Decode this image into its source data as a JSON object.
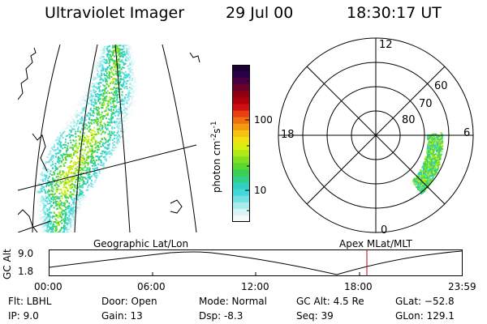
{
  "header": {
    "instrument": "Ultraviolet Imager",
    "date": "29 Jul 00",
    "time": "18:30:17 UT"
  },
  "colorbar": {
    "unit_label": "photon cm",
    "unit_sup1": "-2",
    "unit_mid": "s",
    "unit_sup2": "-1",
    "ticks": [
      "100",
      "10"
    ],
    "colors": [
      "#1a0033",
      "#2c0048",
      "#4a0040",
      "#6b0028",
      "#8e0012",
      "#b0000a",
      "#d01010",
      "#e84010",
      "#f07010",
      "#f49a10",
      "#f8c010",
      "#f0e010",
      "#d8f010",
      "#b0e818",
      "#80e020",
      "#58d830",
      "#38d050",
      "#30d088",
      "#30d0c0",
      "#40d8d8",
      "#70e0e0",
      "#a8ecec",
      "#d8f4f4",
      "#f4fafa"
    ]
  },
  "polar": {
    "mlt_labels": {
      "top": "12",
      "left": "18",
      "right": "6",
      "bottom": "0"
    },
    "lat_labels": [
      "60",
      "70",
      "80"
    ]
  },
  "geo_label": "Geographic Lat/Lon",
  "apex_label": "Apex MLat/MLT",
  "orbit": {
    "axis_label": "GC Alt",
    "y_ticks": [
      "9.0",
      "1.8"
    ],
    "x_ticks": [
      "00:00",
      "06:00",
      "12:00",
      "18:00",
      "23:59"
    ]
  },
  "info": {
    "filter": "Flt: LBHL",
    "ip": "IP:  9.0",
    "door": "Door: Open",
    "gain": "Gain: 13",
    "mode": "Mode: Normal",
    "dsp": "Dsp:    -8.3",
    "gc_alt": "GC Alt: 4.5 Re",
    "seq": "Seq: 39",
    "glat": "GLat: −52.8",
    "glon": "GLon: 129.1"
  }
}
